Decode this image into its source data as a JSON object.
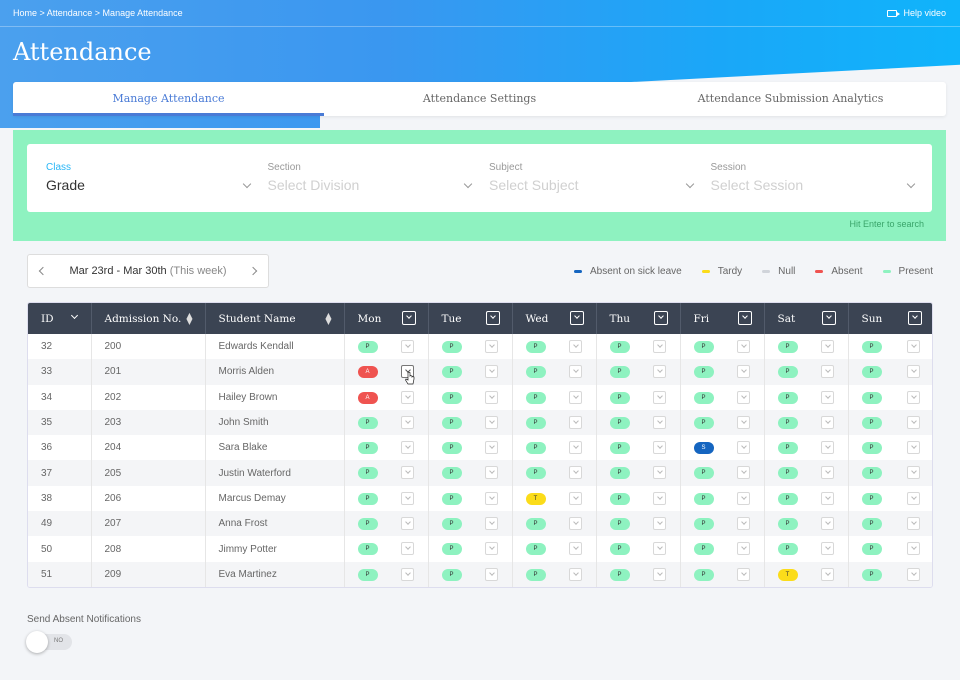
{
  "breadcrumb": "Home > Attendance > Manage Attendance",
  "help_label": "Help video",
  "page_title": "Attendance",
  "tabs": [
    {
      "label": "Manage Attendance",
      "active": true
    },
    {
      "label": "Attendance Settings",
      "active": false
    },
    {
      "label": "Attendance Submission Analytics",
      "active": false
    }
  ],
  "filters": [
    {
      "label": "Class",
      "value": "Grade",
      "filled": true
    },
    {
      "label": "Section",
      "value": "Select Division",
      "filled": false
    },
    {
      "label": "Subject",
      "value": "Select Subject",
      "filled": false
    },
    {
      "label": "Session",
      "value": "Select Session",
      "filled": false
    }
  ],
  "search_hint": "Hit Enter to search",
  "week": {
    "range": "Mar 23rd - Mar 30th",
    "suffix": "(This week)"
  },
  "legend": [
    {
      "label": "Absent on sick leave",
      "color": "#1565c0"
    },
    {
      "label": "Tardy",
      "color": "#fbdc1a"
    },
    {
      "label": "Null",
      "color": "#d0d4da"
    },
    {
      "label": "Absent",
      "color": "#ef5350"
    },
    {
      "label": "Present",
      "color": "#8ef2c0"
    }
  ],
  "table": {
    "headers": {
      "id": "ID",
      "admission": "Admission No.",
      "name": "Student Name"
    },
    "days": [
      "Mon",
      "Tue",
      "Wed",
      "Thu",
      "Fri",
      "Sat",
      "Sun"
    ],
    "rows": [
      {
        "id": "32",
        "adm": "200",
        "name": "Edwards Kendall",
        "att": [
          "P",
          "P",
          "P",
          "P",
          "P",
          "P",
          "P"
        ]
      },
      {
        "id": "33",
        "adm": "201",
        "name": "Morris Alden",
        "att": [
          "A",
          "P",
          "P",
          "P",
          "P",
          "P",
          "P"
        ]
      },
      {
        "id": "34",
        "adm": "202",
        "name": "Hailey Brown",
        "att": [
          "A",
          "P",
          "P",
          "P",
          "P",
          "P",
          "P"
        ]
      },
      {
        "id": "35",
        "adm": "203",
        "name": "John Smith",
        "att": [
          "P",
          "P",
          "P",
          "P",
          "P",
          "P",
          "P"
        ]
      },
      {
        "id": "36",
        "adm": "204",
        "name": "Sara Blake",
        "att": [
          "P",
          "P",
          "P",
          "P",
          "S",
          "P",
          "P"
        ]
      },
      {
        "id": "37",
        "adm": "205",
        "name": "Justin Waterford",
        "att": [
          "P",
          "P",
          "P",
          "P",
          "P",
          "P",
          "P"
        ]
      },
      {
        "id": "38",
        "adm": "206",
        "name": "Marcus Demay",
        "att": [
          "P",
          "P",
          "T",
          "P",
          "P",
          "P",
          "P"
        ]
      },
      {
        "id": "49",
        "adm": "207",
        "name": "Anna Frost",
        "att": [
          "P",
          "P",
          "P",
          "P",
          "P",
          "P",
          "P"
        ]
      },
      {
        "id": "50",
        "adm": "208",
        "name": "Jimmy Potter",
        "att": [
          "P",
          "P",
          "P",
          "P",
          "P",
          "P",
          "P"
        ]
      },
      {
        "id": "51",
        "adm": "209",
        "name": "Eva Martinez",
        "att": [
          "P",
          "P",
          "P",
          "P",
          "P",
          "T",
          "P"
        ]
      }
    ]
  },
  "notifications": {
    "label": "Send Absent Notifications",
    "toggle_text": "NO",
    "enabled": false
  }
}
